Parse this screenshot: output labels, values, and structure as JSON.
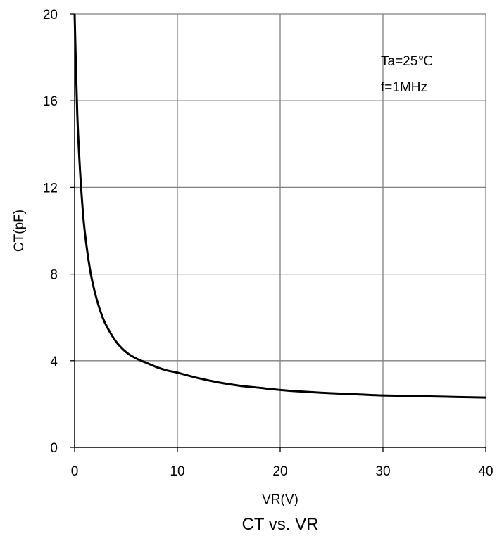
{
  "chart_data": {
    "type": "line",
    "title": "CT vs. VR",
    "xlabel": "VR(V)",
    "ylabel": "CT(pF)",
    "xlim": [
      0,
      40
    ],
    "ylim": [
      0,
      20
    ],
    "xticks": [
      0,
      10,
      20,
      30,
      40
    ],
    "yticks": [
      0,
      4,
      8,
      12,
      16,
      20
    ],
    "xtick_labels": [
      "0",
      "10",
      "20",
      "30",
      "40"
    ],
    "ytick_labels": [
      "0",
      "4",
      "8",
      "12",
      "16",
      "20"
    ],
    "grid": true,
    "annotations": [
      "Ta=25℃",
      "f=1MHz"
    ],
    "colors": {
      "line": "#000000",
      "grid": "#808080",
      "axis": "#000000"
    },
    "series": [
      {
        "x": [
          0,
          0.25,
          0.5,
          0.75,
          1,
          1.5,
          2,
          2.5,
          3,
          4,
          5,
          6,
          7,
          8,
          9,
          10,
          12,
          14,
          16,
          18,
          20,
          22,
          25,
          28,
          30,
          35,
          40
        ],
        "values": [
          20.0,
          15.5,
          13.0,
          11.2,
          9.9,
          8.2,
          7.1,
          6.3,
          5.7,
          4.9,
          4.4,
          4.1,
          3.9,
          3.7,
          3.55,
          3.45,
          3.2,
          3.0,
          2.85,
          2.75,
          2.65,
          2.58,
          2.5,
          2.44,
          2.4,
          2.35,
          2.3
        ]
      }
    ]
  }
}
